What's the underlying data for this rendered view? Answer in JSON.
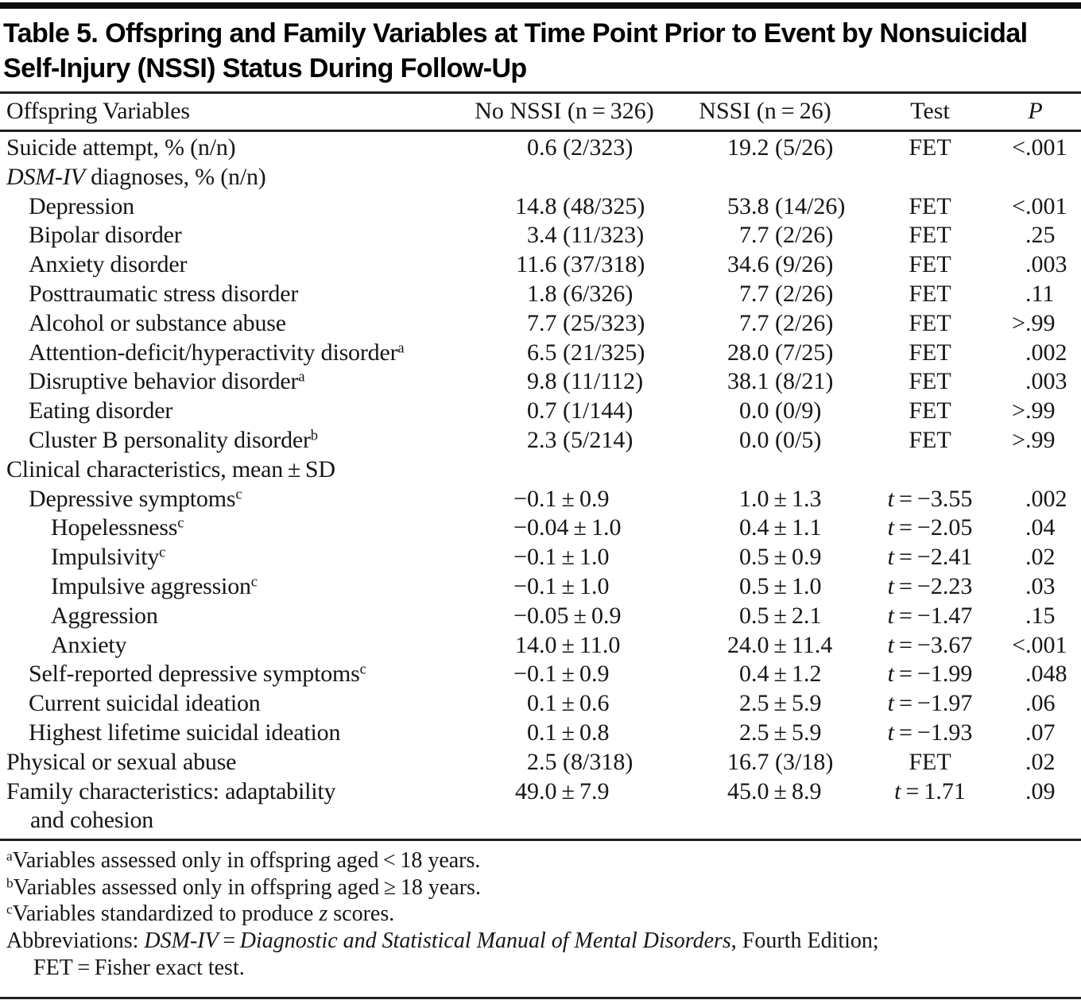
{
  "title": "Table 5. Offspring and Family Variables at Time Point Prior to Event by Nonsuicidal Self-Injury (NSSI) Status During Follow-Up",
  "header": {
    "col_variables": "Offspring Variables",
    "col_no_nssi": "No NSSI (n = 326)",
    "col_nssi": "NSSI (n = 26)",
    "col_test": "Test",
    "col_p": "P"
  },
  "rows": [
    {
      "indent": 0,
      "label": "Suicide attempt, % (n/n)",
      "no_nssi": "0.6 (2/323)",
      "nssi": "19.2 (5/26)",
      "test": "FET",
      "p": "<.001"
    },
    {
      "indent": 0,
      "label_italic": "DSM-IV",
      "label": " diagnoses, % (n/n)",
      "no_nssi": "",
      "nssi": "",
      "test": "",
      "p": ""
    },
    {
      "indent": 1,
      "label": "Depression",
      "no_nssi": "14.8 (48/325)",
      "nssi": "53.8 (14/26)",
      "test": "FET",
      "p": "<.001"
    },
    {
      "indent": 1,
      "label": "Bipolar disorder",
      "no_nssi": "3.4 (11/323)",
      "nssi": "7.7 (2/26)",
      "test": "FET",
      "p": ".25"
    },
    {
      "indent": 1,
      "label": "Anxiety disorder",
      "no_nssi": "11.6 (37/318)",
      "nssi": "34.6 (9/26)",
      "test": "FET",
      "p": ".003"
    },
    {
      "indent": 1,
      "label": "Posttraumatic stress disorder",
      "no_nssi": "1.8 (6/326)",
      "nssi": "7.7 (2/26)",
      "test": "FET",
      "p": ".11"
    },
    {
      "indent": 1,
      "label": "Alcohol or substance abuse",
      "no_nssi": "7.7 (25/323)",
      "nssi": "7.7 (2/26)",
      "test": "FET",
      "p": ">.99"
    },
    {
      "indent": 1,
      "label": "Attention-deficit/hyperactivity disorder",
      "sup": "a",
      "no_nssi": "6.5 (21/325)",
      "nssi": "28.0 (7/25)",
      "test": "FET",
      "p": ".002"
    },
    {
      "indent": 1,
      "label": "Disruptive behavior disorder",
      "sup": "a",
      "no_nssi": "9.8 (11/112)",
      "nssi": "38.1 (8/21)",
      "test": "FET",
      "p": ".003"
    },
    {
      "indent": 1,
      "label": "Eating disorder",
      "no_nssi": "0.7 (1/144)",
      "nssi": "0.0 (0/9)",
      "test": "FET",
      "p": ">.99"
    },
    {
      "indent": 1,
      "label": "Cluster B personality disorder",
      "sup": "b",
      "no_nssi": "2.3 (5/214)",
      "nssi": "0.0 (0/5)",
      "test": "FET",
      "p": ">.99"
    },
    {
      "indent": 0,
      "label": "Clinical characteristics, mean ± SD",
      "no_nssi": "",
      "nssi": "",
      "test": "",
      "p": ""
    },
    {
      "indent": 1,
      "label": "Depressive symptoms",
      "sup": "c",
      "no_nssi": "−0.1 ± 0.9",
      "nssi": "1.0 ± 1.3",
      "test": "t = −3.55",
      "p": ".002"
    },
    {
      "indent": 2,
      "label": "Hopelessness",
      "sup": "c",
      "no_nssi": "−0.04 ± 1.0",
      "nssi": "0.4 ± 1.1",
      "test": "t = −2.05",
      "p": ".04"
    },
    {
      "indent": 2,
      "label": "Impulsivity",
      "sup": "c",
      "no_nssi": "−0.1 ± 1.0",
      "nssi": "0.5 ± 0.9",
      "test": "t = −2.41",
      "p": ".02"
    },
    {
      "indent": 2,
      "label": "Impulsive aggression",
      "sup": "c",
      "no_nssi": "−0.1 ± 1.0",
      "nssi": "0.5 ± 1.0",
      "test": "t = −2.23",
      "p": ".03"
    },
    {
      "indent": 2,
      "label": "Aggression",
      "no_nssi": "−0.05 ± 0.9",
      "nssi": "0.5 ± 2.1",
      "test": "t = −1.47",
      "p": ".15"
    },
    {
      "indent": 2,
      "label": "Anxiety",
      "no_nssi": "14.0 ± 11.0",
      "nssi": "24.0 ± 11.4",
      "test": "t = −3.67",
      "p": "<.001"
    },
    {
      "indent": 1,
      "label": "Self-reported depressive symptoms",
      "sup": "c",
      "no_nssi": "−0.1 ± 0.9",
      "nssi": "0.4 ± 1.2",
      "test": "t = −1.99",
      "p": ".048"
    },
    {
      "indent": 1,
      "label": "Current suicidal ideation",
      "no_nssi": "0.1 ± 0.6",
      "nssi": "2.5 ± 5.9",
      "test": "t = −1.97",
      "p": ".06"
    },
    {
      "indent": 1,
      "label": "Highest lifetime suicidal ideation",
      "no_nssi": "0.1 ± 0.8",
      "nssi": "2.5 ± 5.9",
      "test": "t = −1.93",
      "p": ".07"
    },
    {
      "indent": 0,
      "label": "Physical or sexual abuse",
      "no_nssi": "2.5 (8/318)",
      "nssi": "16.7 (3/18)",
      "test": "FET",
      "p": ".02"
    },
    {
      "indent": 0,
      "label": "Family characteristics: adaptability",
      "label2": "and cohesion",
      "no_nssi": "49.0 ± 7.9",
      "nssi": "45.0 ± 8.9",
      "test": "t = 1.71",
      "p": ".09"
    }
  ],
  "footnotes": [
    {
      "sup": "a",
      "indent": false,
      "segments": [
        {
          "text": "Variables assessed only in offspring aged < 18 years."
        }
      ]
    },
    {
      "sup": "b",
      "indent": false,
      "segments": [
        {
          "text": "Variables assessed only in offspring aged ≥ 18 years."
        }
      ]
    },
    {
      "sup": "c",
      "indent": false,
      "segments": [
        {
          "text": "Variables standardized to produce "
        },
        {
          "text": "z",
          "italic": true
        },
        {
          "text": " scores."
        }
      ]
    },
    {
      "sup": "",
      "indent": false,
      "segments": [
        {
          "text": "Abbreviations: "
        },
        {
          "text": "DSM-IV",
          "italic": true
        },
        {
          "text": " = "
        },
        {
          "text": "Diagnostic and Statistical Manual of Mental Disorders",
          "italic": true
        },
        {
          "text": ", Fourth Edition;"
        }
      ]
    },
    {
      "sup": "",
      "indent": true,
      "segments": [
        {
          "text": "FET = Fisher exact test."
        }
      ]
    }
  ],
  "colors": {
    "text": "#161616",
    "rule": "#1f1f1f",
    "top_bar": "#0a0a0a",
    "background": "#ffffff"
  }
}
